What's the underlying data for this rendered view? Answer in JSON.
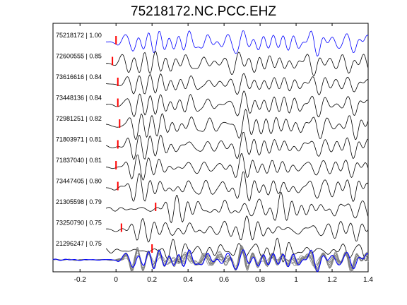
{
  "chart_data": {
    "type": "line",
    "title": "75218172.NC.PCC.EHZ",
    "xlabel": "",
    "ylabel": "",
    "xlim": [
      -0.35,
      1.4
    ],
    "xticks": [
      -0.2,
      0,
      0.2,
      0.4,
      0.6,
      0.8,
      1,
      1.2,
      1.4
    ],
    "xtick_labels": [
      "-0.2",
      "0",
      "0.2",
      "0.4",
      "0.6",
      "0.8",
      "1",
      "1.2",
      "1.4"
    ],
    "grid": false,
    "legend": "none",
    "pick_marker_color": "#ff0000",
    "reference_color": "#0000ff",
    "trace_color": "#000000",
    "stack_color": "#808080",
    "traces": [
      {
        "label": "75218172 | 1.00",
        "pick_time": 0.0,
        "reference": true
      },
      {
        "label": "72600555 | 0.85",
        "pick_time": -0.02
      },
      {
        "label": "73616616 | 0.84",
        "pick_time": 0.01
      },
      {
        "label": "73448136 | 0.84",
        "pick_time": 0.01
      },
      {
        "label": "72981251 | 0.82",
        "pick_time": 0.02
      },
      {
        "label": "71803971 | 0.81",
        "pick_time": 0.01
      },
      {
        "label": "71837040 | 0.81",
        "pick_time": 0.0
      },
      {
        "label": "73447405 | 0.80",
        "pick_time": 0.01
      },
      {
        "label": "21305598 | 0.79",
        "pick_time": 0.22
      },
      {
        "label": "73250790 | 0.75",
        "pick_time": 0.03
      },
      {
        "label": "21296247 | 0.75",
        "pick_time": 0.2
      }
    ],
    "stack": {
      "label": "",
      "overlay_count": 11
    }
  }
}
